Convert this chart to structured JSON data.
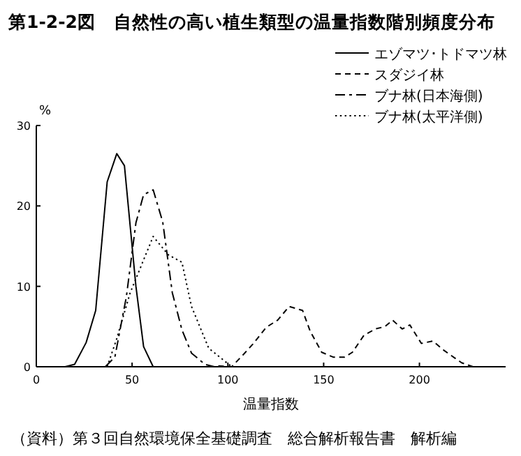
{
  "chart_data": {
    "type": "line",
    "title": "第1-2-2図　自然性の高い植生類型の温量指数階別頻度分布",
    "xlabel": "温量指数",
    "ylabel": "%",
    "annotations": [
      "（資料）第３回自然環境保全基礎調査　総合解析報告書　解析編"
    ],
    "xlim": [
      0,
      245
    ],
    "xticks": [
      0,
      50,
      100,
      150,
      200
    ],
    "ylim": [
      0,
      30
    ],
    "yticks": [
      0,
      10,
      20,
      30
    ],
    "grid": false,
    "legend": "top right",
    "marker": "none",
    "series": [
      {
        "name": "エゾマツ･トドマツ林",
        "color": "#000000",
        "line_style": "solid",
        "x": [
          15,
          20,
          26,
          31,
          37,
          42,
          46,
          52,
          56,
          61
        ],
        "values": [
          0,
          0.3,
          3,
          7,
          23,
          26.5,
          25,
          10,
          2.5,
          0
        ]
      },
      {
        "name": "スダジイ林",
        "color": "#000000",
        "line_style": "dashed",
        "x": [
          95,
          102,
          108,
          113,
          120,
          126,
          132,
          139,
          143,
          149,
          155,
          161,
          165,
          171,
          177,
          182,
          186,
          191,
          195,
          201,
          207,
          213,
          222,
          228,
          242
        ],
        "values": [
          0.1,
          0,
          1.5,
          2.8,
          4.9,
          5.8,
          7.5,
          7,
          4.4,
          1.8,
          1.2,
          1.2,
          1.8,
          3.9,
          4.7,
          5,
          5.8,
          4.7,
          5.2,
          2.9,
          3.2,
          2,
          0.5,
          0,
          0
        ]
      },
      {
        "name": "ブナ林(日本海側)",
        "color": "#000000",
        "line_style": "dashdot",
        "x": [
          36,
          41,
          47,
          52,
          56,
          61,
          66,
          71,
          76,
          81,
          88,
          93
        ],
        "values": [
          0,
          1.2,
          8.7,
          17.9,
          21.4,
          22,
          18,
          9.2,
          4.6,
          1.7,
          0.3,
          0
        ]
      },
      {
        "name": "ブナ林(太平洋側)",
        "color": "#000000",
        "line_style": "dotted",
        "x": [
          37,
          42,
          49,
          61,
          69,
          76,
          81,
          90,
          102
        ],
        "values": [
          0,
          3.5,
          9.2,
          16.2,
          13.9,
          13,
          7.5,
          2.3,
          0
        ]
      }
    ]
  }
}
